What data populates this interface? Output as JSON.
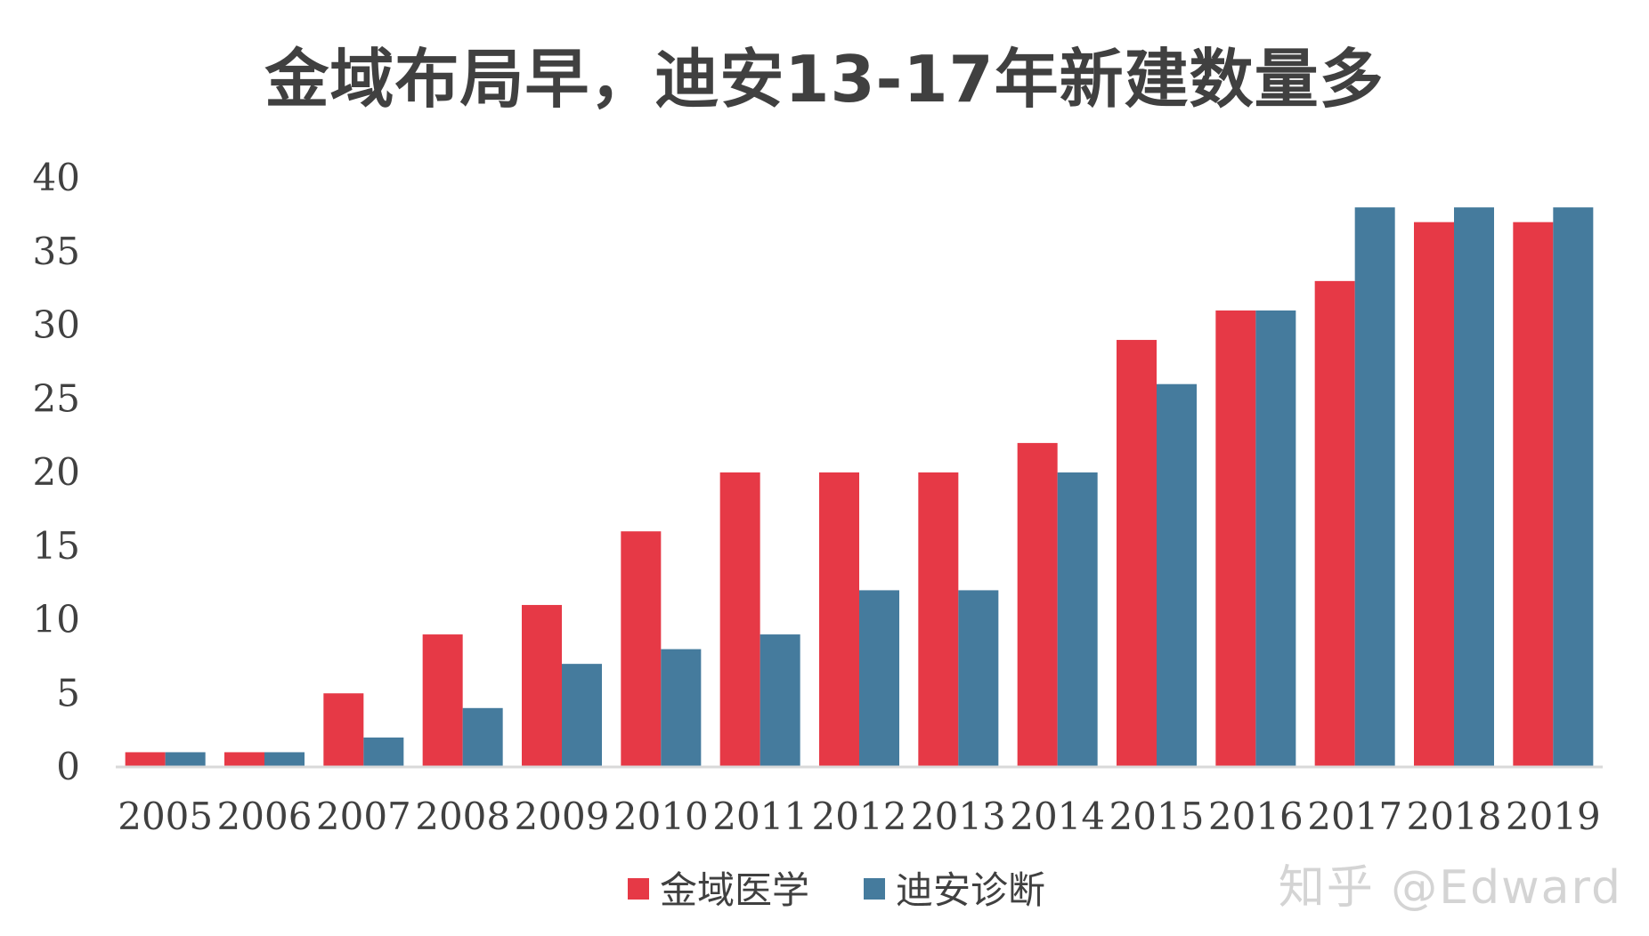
{
  "chart_data": {
    "type": "bar",
    "title": "金域布局早，迪安13-17年新建数量多",
    "categories": [
      "2005",
      "2006",
      "2007",
      "2008",
      "2009",
      "2010",
      "2011",
      "2012",
      "2013",
      "2014",
      "2015",
      "2016",
      "2017",
      "2018",
      "2019"
    ],
    "series": [
      {
        "name": "金域医学",
        "color": "#E63946",
        "values": [
          1,
          1,
          5,
          9,
          11,
          16,
          20,
          20,
          20,
          22,
          29,
          31,
          33,
          37,
          37
        ]
      },
      {
        "name": "迪安诊断",
        "color": "#457B9D",
        "values": [
          1,
          1,
          2,
          4,
          7,
          8,
          9,
          12,
          12,
          20,
          26,
          31,
          38,
          38,
          38
        ]
      }
    ],
    "ylim": [
      0,
      40
    ],
    "yticks": [
      0,
      5,
      10,
      15,
      20,
      25,
      30,
      35,
      40
    ],
    "grid": false,
    "legend": "bottom-center",
    "xlabel": "",
    "ylabel": ""
  },
  "watermark": "知乎 @Edward"
}
